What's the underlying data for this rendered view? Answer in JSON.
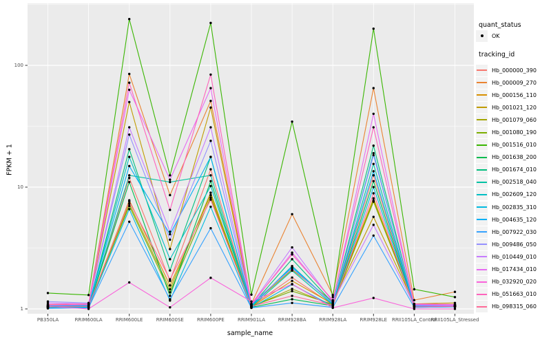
{
  "chart_data": {
    "type": "line",
    "title": "",
    "xlabel": "sample_name",
    "ylabel": "FPKM + 1",
    "y_scale": "log10",
    "grid": true,
    "legend_position": "right",
    "ylim": [
      0.93,
      320
    ],
    "y_ticks": [
      {
        "value": 1,
        "label": "1"
      },
      {
        "value": 10,
        "label": "10"
      },
      {
        "value": 100,
        "label": "100"
      }
    ],
    "y_minor_gridlines": [
      3.162,
      31.62,
      316.2
    ],
    "categories": [
      "PB350LA",
      "RRIM600LA",
      "RRIM600LE",
      "RRIM600SE",
      "RRIM600PE",
      "RRIM901LA",
      "RRIM928BA",
      "RRIM928LA",
      "RRIM928LE",
      "RRII105LA_Control",
      "RRII105LA_Stressed"
    ],
    "legend": {
      "quant_status_title": "quant_status",
      "quant_status_items": [
        {
          "label": "OK",
          "shape": "point",
          "color": "#000000"
        }
      ],
      "tracking_id_title": "tracking_id"
    },
    "series": [
      {
        "name": "Hb_000000_390",
        "color": "#F8766D",
        "values": [
          1.05,
          1.04,
          11.9,
          1.7,
          14.0,
          1.05,
          1.81,
          1.08,
          12.5,
          1.05,
          1.04
        ]
      },
      {
        "name": "Hb_000009_270",
        "color": "#EA8331",
        "values": [
          1.08,
          1.1,
          85,
          8.6,
          51,
          1.1,
          6.0,
          1.3,
          65,
          1.18,
          1.38
        ]
      },
      {
        "name": "Hb_000156_110",
        "color": "#D89000",
        "values": [
          1.04,
          1.05,
          7.8,
          1.56,
          8.6,
          1.04,
          1.7,
          1.1,
          8.1,
          1.06,
          1.05
        ]
      },
      {
        "name": "Hb_001021_120",
        "color": "#C09B00",
        "values": [
          1.06,
          1.08,
          50,
          3.1,
          45,
          1.08,
          2.1,
          1.15,
          5.7,
          1.1,
          1.12
        ]
      },
      {
        "name": "Hb_001079_060",
        "color": "#A3A500",
        "values": [
          1.03,
          1.04,
          7.3,
          1.45,
          9.0,
          1.04,
          1.46,
          1.07,
          7.8,
          1.05,
          1.06
        ]
      },
      {
        "name": "Hb_001080_190",
        "color": "#7CAE00",
        "values": [
          1.05,
          1.06,
          7.0,
          1.37,
          8.2,
          1.05,
          1.4,
          1.09,
          7.6,
          1.07,
          1.08
        ]
      },
      {
        "name": "Hb_001516_010",
        "color": "#39B600",
        "values": [
          1.35,
          1.3,
          240,
          12.5,
          223,
          1.31,
          34.5,
          1.25,
          200,
          1.45,
          1.25
        ]
      },
      {
        "name": "Hb_001638_200",
        "color": "#00BB4E",
        "values": [
          1.02,
          1.03,
          11.0,
          1.28,
          11.2,
          1.03,
          1.2,
          1.06,
          11.2,
          1.04,
          1.05
        ]
      },
      {
        "name": "Hb_001674_010",
        "color": "#00BF7D",
        "values": [
          1.04,
          1.05,
          20.5,
          2.07,
          17.7,
          1.06,
          2.56,
          1.12,
          21.9,
          1.06,
          1.07
        ]
      },
      {
        "name": "Hb_002518_040",
        "color": "#00C1A3",
        "values": [
          1.03,
          1.04,
          12.5,
          11.0,
          12.5,
          1.04,
          2.06,
          1.08,
          15.5,
          1.05,
          1.04
        ]
      },
      {
        "name": "Hb_002609_120",
        "color": "#00BFC4",
        "values": [
          1.05,
          1.06,
          17.7,
          2.56,
          10.2,
          1.05,
          2.25,
          1.1,
          19.0,
          1.06,
          1.05
        ]
      },
      {
        "name": "Hb_002835_310",
        "color": "#00BAE0",
        "values": [
          1.02,
          1.03,
          6.6,
          1.17,
          6.9,
          1.02,
          1.59,
          1.05,
          10.0,
          1.03,
          1.04
        ]
      },
      {
        "name": "Hb_004635_120",
        "color": "#00B0F6",
        "values": [
          1.06,
          1.07,
          14.9,
          4.1,
          17.7,
          1.07,
          2.2,
          1.1,
          13.5,
          1.05,
          1.06
        ]
      },
      {
        "name": "Hb_007922_030",
        "color": "#35A2FF",
        "values": [
          1.01,
          1.02,
          5.2,
          1.2,
          4.6,
          1.02,
          1.12,
          1.03,
          4.0,
          1.03,
          1.04
        ]
      },
      {
        "name": "Hb_009486_050",
        "color": "#9590FF",
        "values": [
          1.15,
          1.12,
          27,
          3.7,
          24,
          1.1,
          2.15,
          1.12,
          18.3,
          1.08,
          1.07
        ]
      },
      {
        "name": "Hb_010449_010",
        "color": "#C77CFF",
        "values": [
          1.12,
          1.1,
          31,
          4.3,
          31,
          1.09,
          3.2,
          1.14,
          4.9,
          1.07,
          1.06
        ]
      },
      {
        "name": "Hb_017434_010",
        "color": "#E76BF3",
        "values": [
          1.07,
          1.08,
          63,
          11.5,
          65,
          1.08,
          2.9,
          1.16,
          40,
          1.09,
          1.08
        ]
      },
      {
        "name": "Hb_032920_020",
        "color": "#FA62DB",
        "values": [
          1.05,
          1.0,
          1.65,
          1.03,
          1.8,
          1.15,
          1.6,
          1.02,
          1.23,
          1.0,
          1.0
        ]
      },
      {
        "name": "Hb_051663_010",
        "color": "#FF62BC",
        "values": [
          1.09,
          1.1,
          72,
          6.5,
          84,
          1.1,
          2.8,
          1.18,
          31,
          1.1,
          1.09
        ]
      },
      {
        "name": "Hb_098315_060",
        "color": "#FF6A98",
        "values": [
          1.04,
          1.05,
          7.6,
          1.75,
          7.9,
          1.05,
          1.28,
          1.07,
          8.9,
          1.04,
          1.05
        ]
      }
    ]
  },
  "colors": {
    "background": "#FFFFFF",
    "panel_bg": "#EBEBEB",
    "gridline": "#FFFFFF",
    "legend_key_bg": "#F2F2F2",
    "tick_label": "#4D4D4D",
    "tick_mark": "#333333",
    "point": "#000000"
  }
}
